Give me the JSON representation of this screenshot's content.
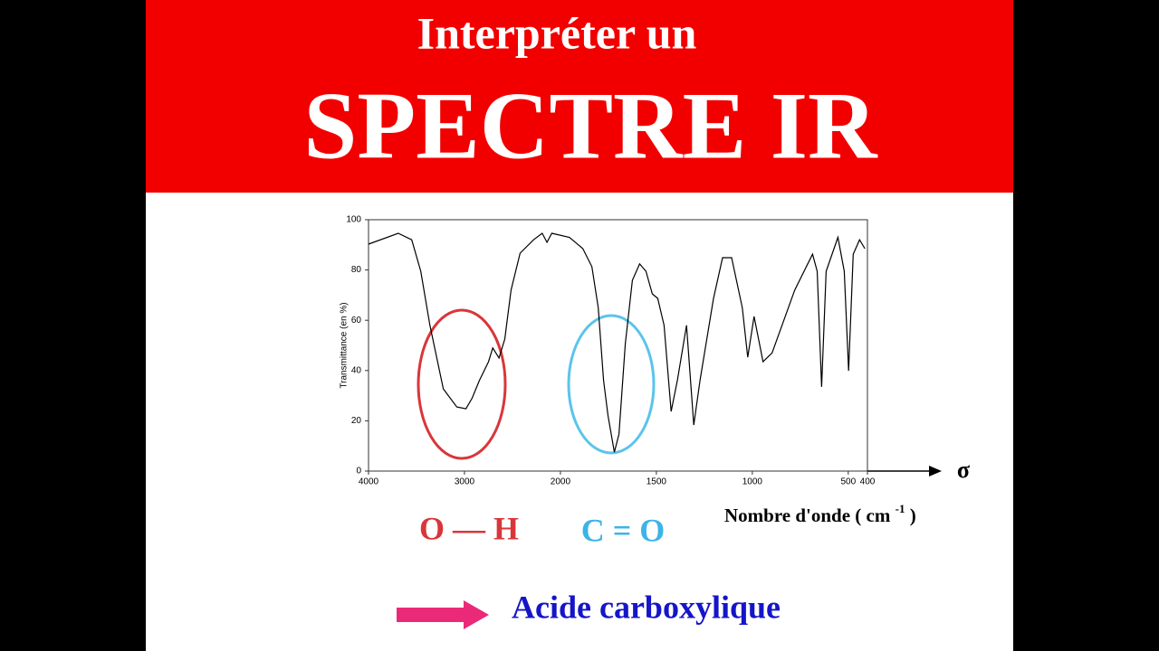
{
  "header": {
    "line1": "Interpréter un",
    "line2": "SPECTRE IR"
  },
  "chart_data": {
    "type": "line",
    "y_label": "Transmittance (en %)",
    "x_label": "Nombre d'onde ( cm",
    "x_label_exponent": "-1",
    "x_label_end": ")",
    "x_symbol": "σ",
    "x": [
      4000,
      3690,
      3550,
      3455,
      3360,
      3220,
      3080,
      2985,
      2920,
      2845,
      2750,
      2705,
      2640,
      2580,
      2515,
      2420,
      2280,
      2190,
      2140,
      2090,
      1953,
      1883,
      1836,
      1803,
      1775,
      1752,
      1719,
      1695,
      1662,
      1625,
      1587,
      1554,
      1521,
      1493,
      1460,
      1423,
      1390,
      1343,
      1305,
      1272,
      1202,
      1155,
      1108,
      1052,
      1024,
      991,
      944,
      897,
      779,
      686,
      662,
      639,
      615,
      554,
      521,
      498,
      474,
      441,
      413
    ],
    "series": [
      {
        "color": "#000000",
        "values": [
          90.3,
          94.6,
          92,
          79.5,
          58,
          32.7,
          25.5,
          24.8,
          29,
          36,
          43.5,
          49,
          45,
          52.5,
          72,
          86.7,
          92,
          94.6,
          91,
          94.6,
          93,
          88.5,
          81.3,
          65,
          36,
          22,
          7.5,
          14.7,
          50.7,
          75.9,
          82.4,
          79.5,
          70.5,
          68.7,
          58,
          23.7,
          36.3,
          58,
          18.3,
          36.3,
          68.7,
          84.9,
          84.9,
          65,
          45.3,
          61.5,
          43.5,
          47,
          72,
          86.3,
          79.5,
          33.5,
          79.5,
          93,
          79.5,
          39.9,
          86.3,
          92,
          88.5
        ]
      }
    ],
    "xlim": [
      4000,
      400
    ],
    "x_scale_break": 2000,
    "xticks": [
      4000,
      3000,
      2000,
      1500,
      1000,
      500,
      400
    ],
    "ylim": [
      0,
      100
    ],
    "yticks": [
      0,
      20,
      40,
      60,
      80,
      100
    ]
  },
  "annotations": {
    "oh": "O — H",
    "co": "C = O",
    "conclusion": "Acide carboxylique"
  }
}
